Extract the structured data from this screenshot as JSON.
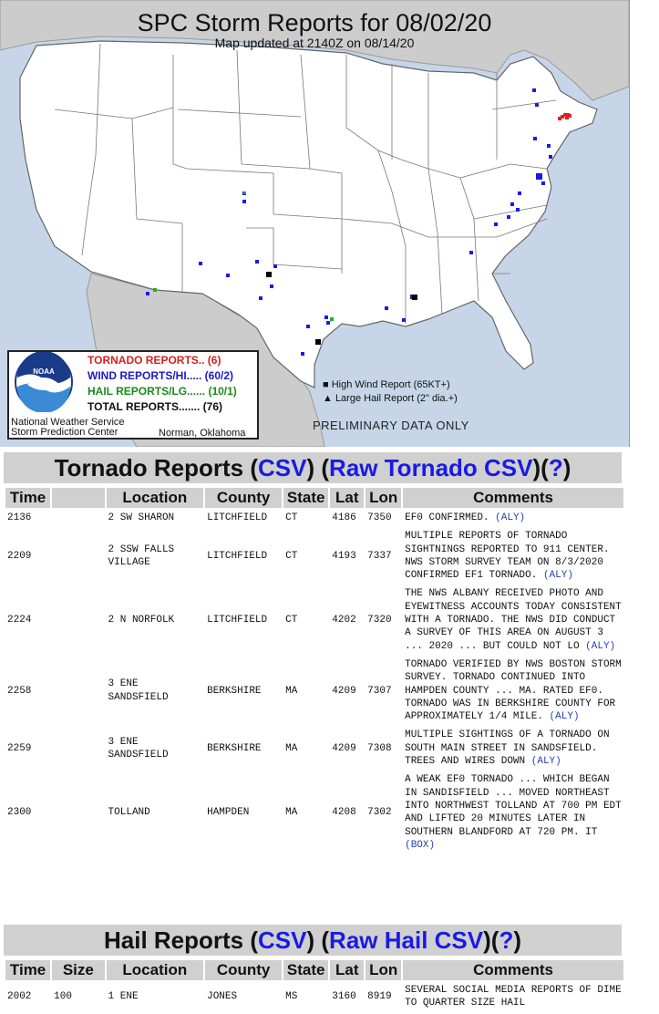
{
  "map": {
    "title": "SPC Storm Reports for 08/02/20",
    "updated": "Map updated at 2140Z on 08/14/20",
    "legend": {
      "tornado": "TORNADO REPORTS.. (6)",
      "wind": "WIND REPORTS/HI..... (60/2)",
      "hail": "HAIL REPORTS/LG...... (10/1)",
      "total": "TOTAL REPORTS....... (76)",
      "noaa_logo_text": "NOAA",
      "nws_line1": "National Weather Service",
      "nws_line2": "Storm Prediction Center",
      "location": "Norman, Oklahoma"
    },
    "key_high_wind": "■ High Wind Report (65KT+)",
    "key_large_hail": "▲ Large Hail Report (2\" dia.+)",
    "preliminary": "PRELIMINARY DATA ONLY",
    "colors": {
      "tornado": "#e02020",
      "wind": "#1a1ae6",
      "hail": "#1fb21f",
      "water": "#c6d6e8",
      "land": "#ffffff",
      "foreign": "#c8c8c8"
    }
  },
  "tornado_section": {
    "title": "Tornado Reports",
    "csv": "CSV",
    "raw": "Raw Tornado CSV",
    "help": "?",
    "headers": [
      "Time",
      "",
      "Location",
      "County",
      "State",
      "Lat",
      "Lon",
      "Comments"
    ],
    "rows": [
      {
        "time": "2136",
        "location": "2 SW SHARON",
        "county": "LITCHFIELD",
        "state": "CT",
        "lat": "4186",
        "lon": "7350",
        "comments": "EF0 CONFIRMED.",
        "office": "(ALY)"
      },
      {
        "time": "2209",
        "location": "2 SSW FALLS VILLAGE",
        "county": "LITCHFIELD",
        "state": "CT",
        "lat": "4193",
        "lon": "7337",
        "comments": "MULTIPLE REPORTS OF TORNADO SIGHTNINGS REPORTED TO 911 CENTER. NWS STORM SURVEY TEAM ON 8/3/2020 CONFIRMED EF1 TORNADO.",
        "office": "(ALY)"
      },
      {
        "time": "2224",
        "location": "2 N NORFOLK",
        "county": "LITCHFIELD",
        "state": "CT",
        "lat": "4202",
        "lon": "7320",
        "comments": "THE NWS ALBANY RECEIVED PHOTO AND EYEWITNESS ACCOUNTS TODAY CONSISTENT WITH A TORNADO. THE NWS DID CONDUCT A SURVEY OF THIS AREA ON AUGUST 3 ... 2020 ... BUT COULD NOT LO",
        "office": "(ALY)"
      },
      {
        "time": "2258",
        "location": "3 ENE SANDSFIELD",
        "county": "BERKSHIRE",
        "state": "MA",
        "lat": "4209",
        "lon": "7307",
        "comments": "TORNADO VERIFIED BY NWS BOSTON STORM SURVEY. TORNADO CONTINUED INTO HAMPDEN COUNTY ... MA. RATED EF0. TORNADO WAS IN BERKSHIRE COUNTY FOR APPROXIMATELY 1/4 MILE.",
        "office": "(ALY)"
      },
      {
        "time": "2259",
        "location": "3 ENE SANDSFIELD",
        "county": "BERKSHIRE",
        "state": "MA",
        "lat": "4209",
        "lon": "7308",
        "comments": "MULTIPLE SIGHTINGS OF A TORNADO ON SOUTH MAIN STREET IN SANDSFIELD. TREES AND WIRES DOWN",
        "office": "(ALY)"
      },
      {
        "time": "2300",
        "location": "TOLLAND",
        "county": "HAMPDEN",
        "state": "MA",
        "lat": "4208",
        "lon": "7302",
        "comments": "A WEAK EF0 TORNADO ... WHICH BEGAN IN SANDISFIELD ... MOVED NORTHEAST INTO NORTHWEST TOLLAND AT 700 PM EDT AND LIFTED 20 MINUTES LATER IN SOUTHERN BLANDFORD AT 720 PM. IT",
        "office": "(BOX)"
      }
    ]
  },
  "hail_section": {
    "title": "Hail Reports",
    "csv": "CSV",
    "raw": "Raw Hail CSV",
    "help": "?",
    "headers": [
      "Time",
      "Size",
      "Location",
      "County",
      "State",
      "Lat",
      "Lon",
      "Comments"
    ],
    "rows": [
      {
        "time": "2002",
        "size": "100",
        "location": "1 ENE",
        "county": "JONES",
        "state": "MS",
        "lat": "3160",
        "lon": "8919",
        "comments": "SEVERAL SOCIAL MEDIA REPORTS OF DIME TO QUARTER SIZE HAIL"
      }
    ]
  }
}
